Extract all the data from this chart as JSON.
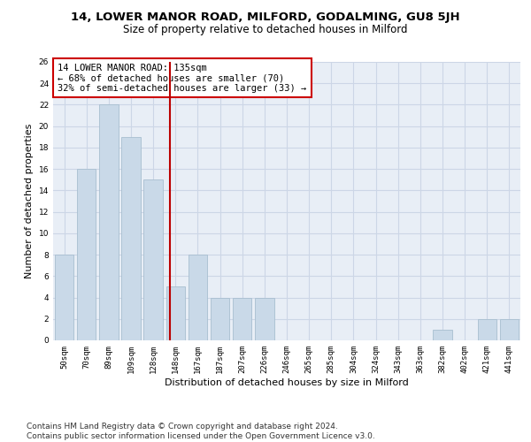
{
  "title1": "14, LOWER MANOR ROAD, MILFORD, GODALMING, GU8 5JH",
  "title2": "Size of property relative to detached houses in Milford",
  "xlabel": "Distribution of detached houses by size in Milford",
  "ylabel": "Number of detached properties",
  "categories": [
    "50sqm",
    "70sqm",
    "89sqm",
    "109sqm",
    "128sqm",
    "148sqm",
    "167sqm",
    "187sqm",
    "207sqm",
    "226sqm",
    "246sqm",
    "265sqm",
    "285sqm",
    "304sqm",
    "324sqm",
    "343sqm",
    "363sqm",
    "382sqm",
    "402sqm",
    "421sqm",
    "441sqm"
  ],
  "values": [
    8,
    16,
    22,
    19,
    15,
    5,
    8,
    4,
    4,
    4,
    0,
    0,
    0,
    0,
    0,
    0,
    0,
    1,
    0,
    2,
    2
  ],
  "bar_color": "#c9d9e8",
  "bar_edge_color": "#a8bfd0",
  "grid_color": "#ccd6e6",
  "bg_color": "#e8eef6",
  "vline_x": 4.75,
  "vline_color": "#bb0000",
  "annotation_text": "14 LOWER MANOR ROAD: 135sqm\n← 68% of detached houses are smaller (70)\n32% of semi-detached houses are larger (33) →",
  "annotation_box_color": "#ffffff",
  "annotation_box_edge": "#cc0000",
  "ylim": [
    0,
    26
  ],
  "yticks": [
    0,
    2,
    4,
    6,
    8,
    10,
    12,
    14,
    16,
    18,
    20,
    22,
    24,
    26
  ],
  "footnote": "Contains HM Land Registry data © Crown copyright and database right 2024.\nContains public sector information licensed under the Open Government Licence v3.0.",
  "title1_fontsize": 9.5,
  "title2_fontsize": 8.5,
  "xlabel_fontsize": 8,
  "ylabel_fontsize": 8,
  "tick_fontsize": 6.5,
  "annotation_fontsize": 7.5,
  "footnote_fontsize": 6.5
}
